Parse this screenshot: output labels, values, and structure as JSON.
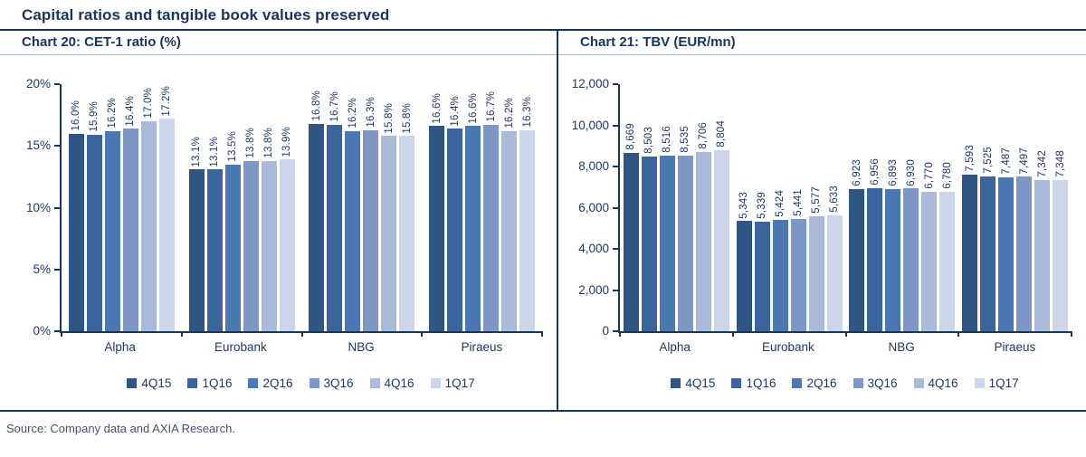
{
  "page": {
    "title": "Capital ratios and tangible book values preserved",
    "source": "Source: Company data and AXIA Research."
  },
  "colors": {
    "navy_text": "#1F3864",
    "frame_line": "#17365D",
    "header_underline": "#A9BCD2",
    "series": [
      "#2E5584",
      "#3A649B",
      "#4A78B2",
      "#7E97C7",
      "#ABBAD9",
      "#CDD5E8"
    ]
  },
  "chart_data": [
    {
      "type": "bar",
      "title": "Chart 20: CET-1 ratio (%)",
      "categories": [
        "Alpha",
        "Eurobank",
        "NBG",
        "Piraeus"
      ],
      "series": [
        {
          "name": "4Q15",
          "values": [
            16.0,
            13.1,
            16.8,
            16.6
          ],
          "labels": [
            "16.0%",
            "13.1%",
            "16.8%",
            "16.6%"
          ]
        },
        {
          "name": "1Q16",
          "values": [
            15.9,
            13.1,
            16.7,
            16.4
          ],
          "labels": [
            "15.9%",
            "13.1%",
            "16.7%",
            "16.4%"
          ]
        },
        {
          "name": "2Q16",
          "values": [
            16.2,
            13.5,
            16.2,
            16.6
          ],
          "labels": [
            "16.2%",
            "13.5%",
            "16.2%",
            "16.6%"
          ]
        },
        {
          "name": "3Q16",
          "values": [
            16.4,
            13.8,
            16.3,
            16.7
          ],
          "labels": [
            "16.4%",
            "13.8%",
            "16.3%",
            "16.7%"
          ]
        },
        {
          "name": "4Q16",
          "values": [
            17.0,
            13.8,
            15.8,
            16.2
          ],
          "labels": [
            "17.0%",
            "13.8%",
            "15.8%",
            "16.2%"
          ]
        },
        {
          "name": "1Q17",
          "values": [
            17.2,
            13.9,
            15.8,
            16.3
          ],
          "labels": [
            "17.2%",
            "13.9%",
            "15.8%",
            "16.3%"
          ]
        }
      ],
      "ylim": [
        0,
        20
      ],
      "yticks": [
        "0%",
        "5%",
        "10%",
        "15%",
        "20%"
      ],
      "grid": false,
      "legend_position": "bottom"
    },
    {
      "type": "bar",
      "title": "Chart 21: TBV (EUR/mn)",
      "categories": [
        "Alpha",
        "Eurobank",
        "NBG",
        "Piraeus"
      ],
      "series": [
        {
          "name": "4Q15",
          "values": [
            8669,
            5343,
            6923,
            7593
          ],
          "labels": [
            "8,669",
            "5,343",
            "6,923",
            "7,593"
          ]
        },
        {
          "name": "1Q16",
          "values": [
            8503,
            5339,
            6956,
            7525
          ],
          "labels": [
            "8,503",
            "5,339",
            "6,956",
            "7,525"
          ]
        },
        {
          "name": "2Q16",
          "values": [
            8516,
            5424,
            6893,
            7487
          ],
          "labels": [
            "8,516",
            "5,424",
            "6,893",
            "7,487"
          ]
        },
        {
          "name": "3Q16",
          "values": [
            8535,
            5441,
            6930,
            7497
          ],
          "labels": [
            "8,535",
            "5,441",
            "6,930",
            "7,497"
          ]
        },
        {
          "name": "4Q16",
          "values": [
            8706,
            5577,
            6770,
            7342
          ],
          "labels": [
            "8,706",
            "5,577",
            "6,770",
            "7,342"
          ]
        },
        {
          "name": "1Q17",
          "values": [
            8804,
            5633,
            6780,
            7348
          ],
          "labels": [
            "8,804",
            "5,633",
            "6,780",
            "7,348"
          ]
        }
      ],
      "ylim": [
        0,
        12000
      ],
      "yticks": [
        "0",
        "2,000",
        "4,000",
        "6,000",
        "8,000",
        "10,000",
        "12,000"
      ],
      "grid": false,
      "legend_position": "bottom"
    }
  ]
}
